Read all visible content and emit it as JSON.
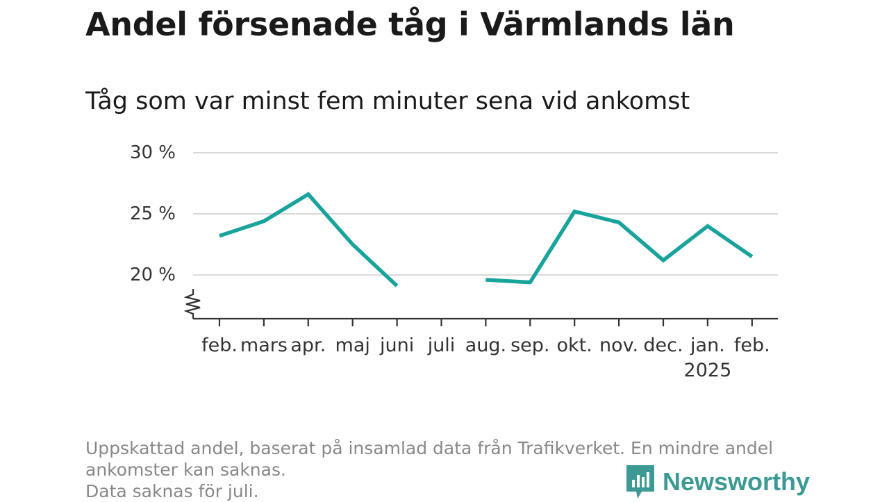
{
  "title": "Andel försenade tåg i Värmlands län",
  "subtitle": "Tåg som var minst fem minuter sena vid ankomst",
  "footnote": {
    "line1": "Uppskattad andel, baserat på insamlad data från Trafikverket. En mindre andel ankomster kan saknas.",
    "line2": "Data saknas för juli."
  },
  "brand": {
    "name": "Newsworthy",
    "icon": "newsworthy-logo-icon",
    "color": "#3d9994"
  },
  "chart_data": {
    "type": "line",
    "categories": [
      "feb.",
      "mars",
      "apr.",
      "maj",
      "juni",
      "juli",
      "aug.",
      "sep.",
      "okt.",
      "nov.",
      "dec.",
      "jan.",
      "feb."
    ],
    "year_label": "2025",
    "year_label_under": "jan.",
    "series": [
      {
        "values": [
          23.2,
          24.4,
          26.6,
          22.5,
          19.1,
          null,
          19.6,
          19.4,
          25.2,
          24.3,
          21.2,
          24.0,
          21.5
        ],
        "color": "#1aa39b"
      }
    ],
    "y_ticks": [
      20,
      25,
      30
    ],
    "y_tick_labels": [
      "20 %",
      "25 %",
      "30 %"
    ],
    "ylim": [
      16.5,
      30
    ],
    "y_axis_break": true,
    "grid": "horizontal",
    "legend": "none",
    "xlabel": "",
    "ylabel": ""
  }
}
